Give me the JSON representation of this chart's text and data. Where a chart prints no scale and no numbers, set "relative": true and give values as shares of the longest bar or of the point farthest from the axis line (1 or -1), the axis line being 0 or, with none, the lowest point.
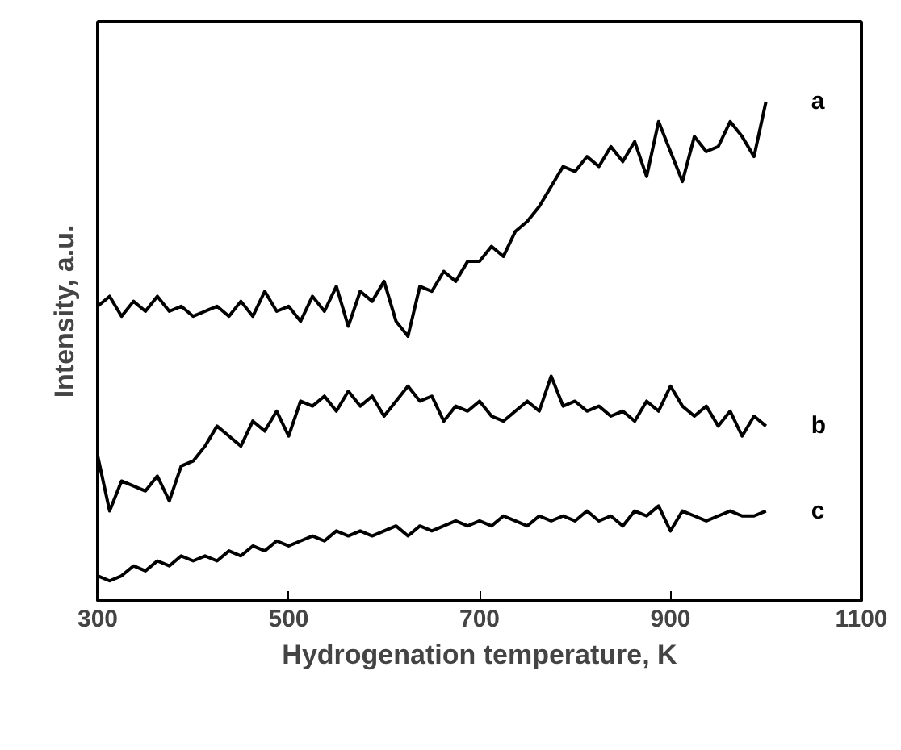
{
  "chart_data": {
    "type": "line",
    "xlabel": "Hydrogenation temperature, K",
    "ylabel": "Intensity, a.u.",
    "relative": true,
    "xlim": [
      300,
      1100
    ],
    "xticks": [
      300,
      500,
      700,
      900,
      1100
    ],
    "grid": false,
    "legend": false,
    "marker": "none",
    "line_style": "solid",
    "x": [
      300,
      312.5,
      325,
      337.5,
      350,
      362.5,
      375,
      387.5,
      400,
      412.5,
      425,
      437.5,
      450,
      462.5,
      475,
      487.5,
      500,
      512.5,
      525,
      537.5,
      550,
      562.5,
      575,
      587.5,
      600,
      612.5,
      625,
      637.5,
      650,
      662.5,
      675,
      687.5,
      700,
      712.5,
      725,
      737.5,
      750,
      762.5,
      775,
      787.5,
      800,
      812.5,
      825,
      837.5,
      850,
      862.5,
      875,
      887.5,
      900,
      912.5,
      925,
      937.5,
      950,
      962.5,
      975,
      987.5,
      1000
    ],
    "series": [
      {
        "name": "a",
        "color": "#000000",
        "values": [
          0.59,
          0.61,
          0.57,
          0.6,
          0.58,
          0.61,
          0.58,
          0.59,
          0.57,
          0.58,
          0.59,
          0.57,
          0.6,
          0.57,
          0.62,
          0.58,
          0.59,
          0.56,
          0.61,
          0.58,
          0.63,
          0.55,
          0.62,
          0.6,
          0.64,
          0.56,
          0.53,
          0.63,
          0.62,
          0.66,
          0.64,
          0.68,
          0.68,
          0.71,
          0.69,
          0.74,
          0.76,
          0.79,
          0.83,
          0.87,
          0.86,
          0.89,
          0.87,
          0.91,
          0.88,
          0.92,
          0.85,
          0.96,
          0.9,
          0.84,
          0.93,
          0.9,
          0.91,
          0.96,
          0.93,
          0.89,
          1.0
        ]
      },
      {
        "name": "b",
        "color": "#000000",
        "values": [
          0.29,
          0.18,
          0.24,
          0.23,
          0.22,
          0.25,
          0.2,
          0.27,
          0.28,
          0.31,
          0.35,
          0.33,
          0.31,
          0.36,
          0.34,
          0.38,
          0.33,
          0.4,
          0.39,
          0.41,
          0.38,
          0.42,
          0.39,
          0.41,
          0.37,
          0.4,
          0.43,
          0.4,
          0.41,
          0.36,
          0.39,
          0.38,
          0.4,
          0.37,
          0.36,
          0.38,
          0.4,
          0.38,
          0.45,
          0.39,
          0.4,
          0.38,
          0.39,
          0.37,
          0.38,
          0.36,
          0.4,
          0.38,
          0.43,
          0.39,
          0.37,
          0.39,
          0.35,
          0.38,
          0.33,
          0.37,
          0.35
        ]
      },
      {
        "name": "c",
        "color": "#000000",
        "values": [
          0.05,
          0.04,
          0.05,
          0.07,
          0.06,
          0.08,
          0.07,
          0.09,
          0.08,
          0.09,
          0.08,
          0.1,
          0.09,
          0.11,
          0.1,
          0.12,
          0.11,
          0.12,
          0.13,
          0.12,
          0.14,
          0.13,
          0.14,
          0.13,
          0.14,
          0.15,
          0.13,
          0.15,
          0.14,
          0.15,
          0.16,
          0.15,
          0.16,
          0.15,
          0.17,
          0.16,
          0.15,
          0.17,
          0.16,
          0.17,
          0.16,
          0.18,
          0.16,
          0.17,
          0.15,
          0.18,
          0.17,
          0.19,
          0.14,
          0.18,
          0.17,
          0.16,
          0.17,
          0.18,
          0.17,
          0.17,
          0.18
        ]
      }
    ]
  }
}
